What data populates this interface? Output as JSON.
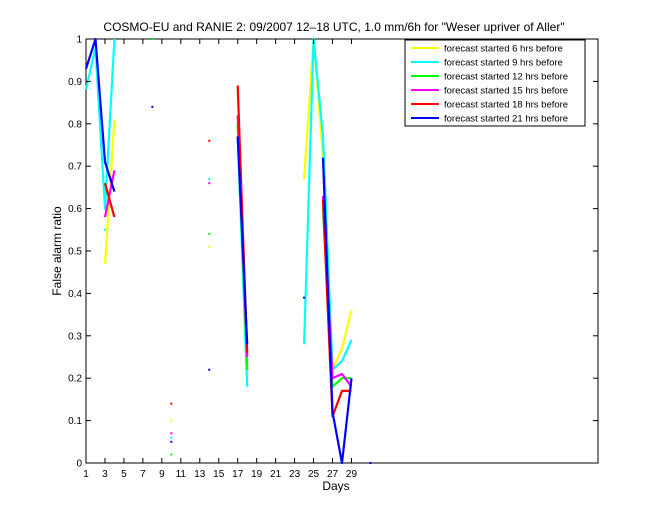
{
  "chart_data": {
    "type": "line",
    "title": "COSMO-EU and RANIE 2: 09/2007 12–18 UTC, 1.0 mm/6h for \"Weser upriver of Aller\"",
    "xlabel": "Days",
    "ylabel": "False alarm ratio",
    "xlim": [
      1,
      55
    ],
    "ylim": [
      0,
      1
    ],
    "xticks": [
      1,
      3,
      5,
      7,
      9,
      11,
      13,
      15,
      17,
      19,
      21,
      23,
      25,
      27,
      29
    ],
    "yticks": [
      0,
      0.1,
      0.2,
      0.3,
      0.4,
      0.5,
      0.6,
      0.7,
      0.8,
      0.9,
      1
    ],
    "ytick_labels": [
      "0",
      "0.1",
      "0.2",
      "0.3",
      "0.4",
      "0.5",
      "0.6",
      "0.7",
      "0.8",
      "0.9",
      "1"
    ],
    "grid": false,
    "legend_position": "top-right",
    "series": [
      {
        "name": "forecast started 6 hrs before",
        "color": "#ffff00",
        "segments": [
          [
            [
              3,
              0.47
            ],
            [
              4,
              0.81
            ]
          ],
          [
            [
              17,
              0.79
            ],
            [
              18,
              0.22
            ]
          ],
          [
            [
              24,
              0.67
            ],
            [
              25,
              1.0
            ],
            [
              26,
              0.72
            ],
            [
              27,
              0.22
            ],
            [
              28,
              0.27
            ],
            [
              29,
              0.36
            ]
          ]
        ],
        "points": [
          [
            10,
            0.1
          ],
          [
            14,
            0.51
          ]
        ]
      },
      {
        "name": "forecast started 9 hrs before",
        "color": "#00ffff",
        "segments": [
          [
            [
              1,
              0.88
            ],
            [
              2,
              0.98
            ],
            [
              3,
              0.6
            ],
            [
              4,
              1.0
            ]
          ],
          [
            [
              17,
              0.77
            ],
            [
              18,
              0.18
            ]
          ],
          [
            [
              24,
              0.28
            ],
            [
              25,
              1.0
            ],
            [
              26,
              0.77
            ],
            [
              27,
              0.22
            ],
            [
              28,
              0.24
            ],
            [
              29,
              0.29
            ]
          ]
        ],
        "points": [
          [
            3,
            0.55
          ],
          [
            10,
            0.06
          ],
          [
            14,
            0.67
          ]
        ]
      },
      {
        "name": "forecast started 12 hrs before",
        "color": "#00ff00",
        "segments": [
          [
            [
              17,
              0.8
            ],
            [
              18,
              0.22
            ]
          ],
          [
            [
              26,
              0.6
            ],
            [
              27,
              0.18
            ],
            [
              28,
              0.2
            ],
            [
              29,
              0.2
            ]
          ]
        ],
        "points": [
          [
            8,
            1.0
          ],
          [
            10,
            0.02
          ],
          [
            14,
            0.54
          ]
        ]
      },
      {
        "name": "forecast started 15 hrs before",
        "color": "#ff00ff",
        "segments": [
          [
            [
              3,
              0.58
            ],
            [
              4,
              0.69
            ]
          ],
          [
            [
              17,
              0.82
            ],
            [
              18,
              0.25
            ]
          ],
          [
            [
              26,
              0.63
            ],
            [
              27,
              0.2
            ],
            [
              28,
              0.21
            ],
            [
              29,
              0.18
            ]
          ]
        ],
        "points": [
          [
            10,
            0.07
          ],
          [
            14,
            0.66
          ]
        ]
      },
      {
        "name": "forecast started 18 hrs before",
        "color": "#ff0000",
        "segments": [
          [
            [
              3,
              0.66
            ],
            [
              4,
              0.58
            ]
          ],
          [
            [
              17,
              0.89
            ],
            [
              18,
              0.26
            ]
          ],
          [
            [
              26,
              0.62
            ],
            [
              27,
              0.11
            ],
            [
              28,
              0.17
            ],
            [
              29,
              0.17
            ]
          ]
        ],
        "points": [
          [
            10,
            0.14
          ],
          [
            14,
            0.76
          ]
        ]
      },
      {
        "name": "forecast started 21 hrs before",
        "color": "#0000ff",
        "segments": [
          [
            [
              1,
              0.93
            ],
            [
              2,
              1.0
            ],
            [
              3,
              0.71
            ],
            [
              4,
              0.64
            ]
          ],
          [
            [
              17,
              0.77
            ],
            [
              18,
              0.28
            ]
          ],
          [
            [
              26,
              0.72
            ],
            [
              27,
              0.12
            ],
            [
              28,
              0.0
            ],
            [
              29,
              0.2
            ]
          ]
        ],
        "points": [
          [
            8,
            0.84
          ],
          [
            10,
            0.05
          ],
          [
            14,
            0.22
          ],
          [
            24,
            0.39
          ],
          [
            31,
            0.0
          ]
        ]
      }
    ]
  }
}
